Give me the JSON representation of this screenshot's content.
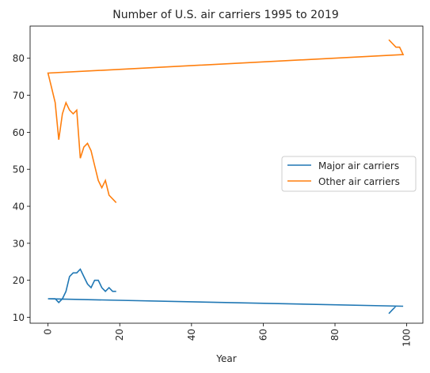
{
  "chart_data": {
    "type": "line",
    "title": "Number of U.S. air carriers 1995 to 2019",
    "xlabel": "Year",
    "ylabel": "",
    "xlim": [
      -5,
      104.5
    ],
    "ylim": [
      8.4,
      88.7
    ],
    "x_ticks": [
      0,
      20,
      40,
      60,
      80,
      100
    ],
    "y_ticks": [
      10,
      20,
      30,
      40,
      50,
      60,
      70,
      80
    ],
    "x_tick_rotation": 90,
    "grid": false,
    "legend_position": "center-right",
    "series": [
      {
        "name": "Major air carriers",
        "color": "#1f77b4",
        "x": [
          95,
          96,
          97,
          98,
          99,
          0,
          1,
          2,
          3,
          4,
          5,
          6,
          7,
          8,
          9,
          10,
          11,
          12,
          13,
          14,
          15,
          16,
          17,
          18,
          19
        ],
        "y": [
          11,
          12,
          13,
          13,
          13,
          15,
          15,
          15,
          14,
          15,
          17,
          21,
          22,
          22,
          23,
          21,
          19,
          18,
          20,
          20,
          18,
          17,
          18,
          17,
          17
        ]
      },
      {
        "name": "Other air carriers",
        "color": "#ff7f0e",
        "x": [
          95,
          96,
          97,
          98,
          99,
          0,
          1,
          2,
          3,
          4,
          5,
          6,
          7,
          8,
          9,
          10,
          11,
          12,
          13,
          14,
          15,
          16,
          17,
          18,
          19
        ],
        "y": [
          85,
          84,
          83,
          83,
          81,
          76,
          72,
          68,
          58,
          65,
          68,
          66,
          65,
          66,
          53,
          56,
          57,
          55,
          51,
          47,
          45,
          47,
          43,
          42,
          41
        ]
      }
    ]
  }
}
